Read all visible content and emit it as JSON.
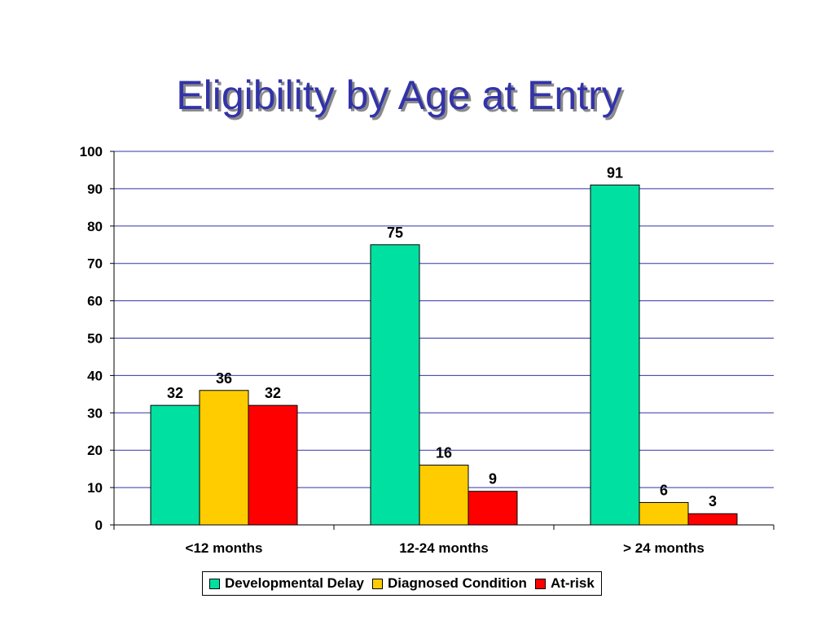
{
  "chart_data": {
    "type": "bar",
    "title": "Eligibility by Age at Entry",
    "categories": [
      "<12 months",
      "12-24 months",
      "> 24 months"
    ],
    "series": [
      {
        "name": "Developmental Delay",
        "values": [
          32,
          75,
          91
        ],
        "color": "#00e0a0"
      },
      {
        "name": "Diagnosed Condition",
        "values": [
          36,
          16,
          6
        ],
        "color": "#ffcc00"
      },
      {
        "name": "At-risk",
        "values": [
          32,
          9,
          3
        ],
        "color": "#ff0000"
      }
    ],
    "yticks": [
      "0",
      "10",
      "20",
      "30",
      "40",
      "50",
      "60",
      "70",
      "80",
      "90",
      "100"
    ],
    "ylim": [
      0,
      100
    ],
    "grid": true,
    "legend_position": "bottom",
    "gridline_color": "#3333aa"
  }
}
